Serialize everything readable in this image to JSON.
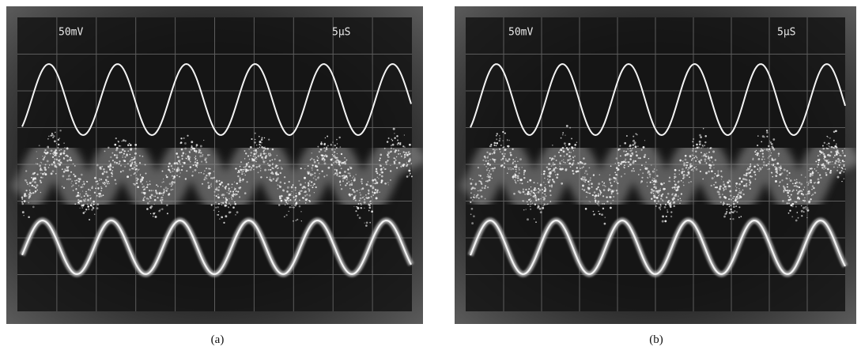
{
  "panels": [
    {
      "volts_per_div": "50mV",
      "time_per_div": "5μS",
      "caption": "(a)"
    },
    {
      "volts_per_div": "50mV",
      "time_per_div": "5μS",
      "caption": "(b)"
    }
  ]
}
